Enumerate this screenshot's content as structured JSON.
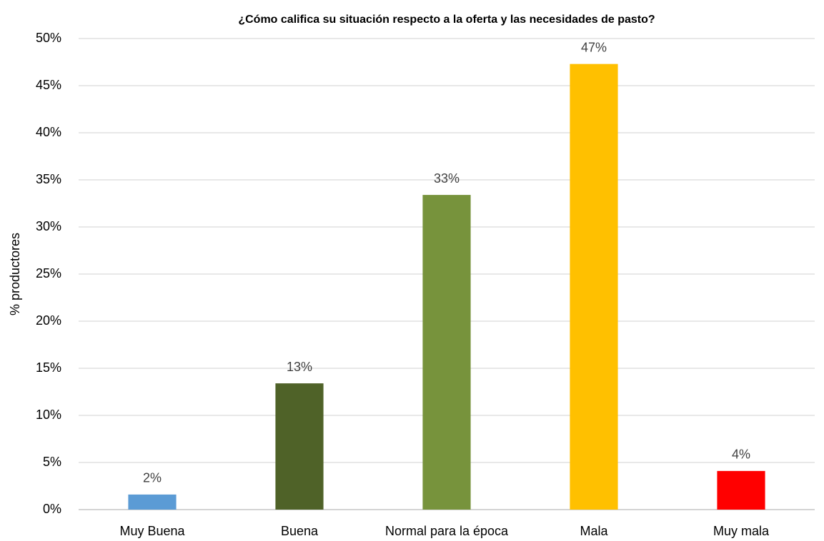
{
  "chart_data": {
    "type": "bar",
    "title": "¿Cómo califica su situación respecto a la oferta y las necesidades de pasto?",
    "y_label": "% productores",
    "categories": [
      "Muy Buena",
      "Buena",
      "Normal para la época",
      "Mala",
      "Muy mala"
    ],
    "values": [
      1.6,
      13.4,
      33.4,
      47.3,
      4.1
    ],
    "value_labels": [
      "2%",
      "13%",
      "33%",
      "47%",
      "4%"
    ],
    "colors": [
      "#5b9bd5",
      "#4f6228",
      "#77933c",
      "#ffc000",
      "#ff0000"
    ],
    "ylim": [
      0,
      50
    ],
    "yticks": [
      {
        "value": 0,
        "label": "0%"
      },
      {
        "value": 5,
        "label": "5%"
      },
      {
        "value": 10,
        "label": "10%"
      },
      {
        "value": 15,
        "label": "15%"
      },
      {
        "value": 20,
        "label": "20%"
      },
      {
        "value": 25,
        "label": "25%"
      },
      {
        "value": 30,
        "label": "30%"
      },
      {
        "value": 35,
        "label": "35%"
      },
      {
        "value": 40,
        "label": "40%"
      },
      {
        "value": 45,
        "label": "45%"
      },
      {
        "value": 50,
        "label": "50%"
      }
    ],
    "grid": true
  }
}
